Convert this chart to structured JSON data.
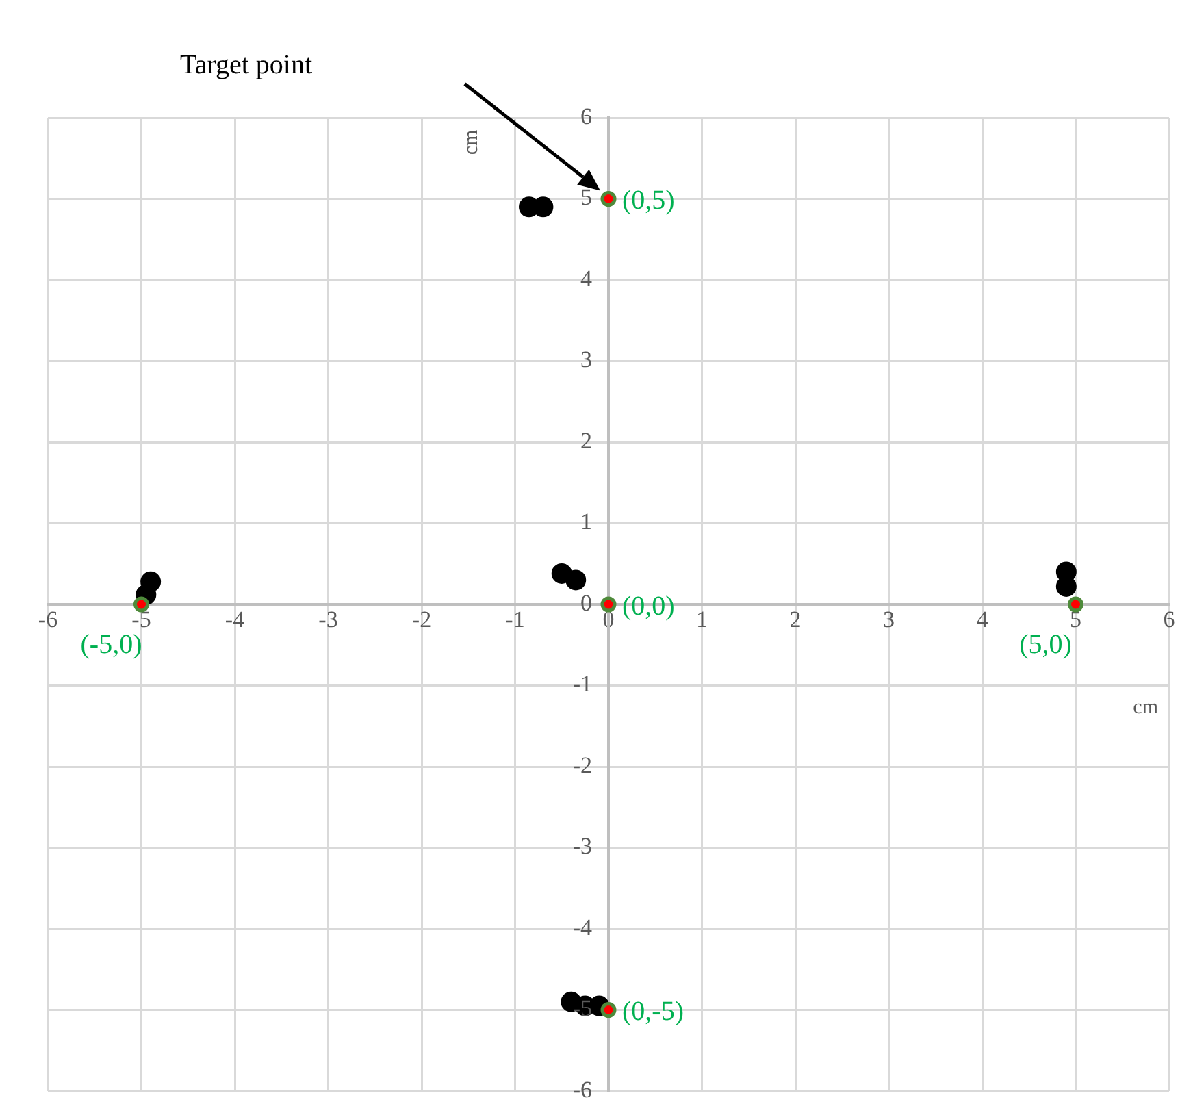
{
  "chart_data": {
    "type": "scatter",
    "xlabel": "cm",
    "ylabel": "cm",
    "xlim": [
      -6,
      6
    ],
    "ylim": [
      -6,
      6
    ],
    "xticks": [
      -6,
      -5,
      -4,
      -3,
      -2,
      -1,
      0,
      1,
      2,
      3,
      4,
      5,
      6
    ],
    "yticks": [
      -6,
      -5,
      -4,
      -3,
      -2,
      -1,
      0,
      1,
      2,
      3,
      4,
      5,
      6
    ],
    "grid": true,
    "legend": false,
    "marker": "circle",
    "series": [
      {
        "color": "#000000",
        "x": [
          -0.85,
          -0.7,
          -0.5,
          -0.35,
          -4.95,
          -4.9,
          4.9,
          4.9,
          -0.4,
          -0.25,
          -0.1
        ],
        "values": [
          4.9,
          4.9,
          0.38,
          0.3,
          0.12,
          0.28,
          0.4,
          0.22,
          -4.9,
          -4.95,
          -4.95
        ]
      },
      {
        "color": "#ff0000",
        "x": [
          0,
          -5,
          0,
          5,
          0
        ],
        "values": [
          5,
          0,
          0,
          0,
          -5
        ]
      }
    ],
    "annotations": [
      "Target point",
      {
        "text": "(0,5)",
        "x": 0,
        "y": 5
      },
      {
        "text": "(-5,0)",
        "x": -5,
        "y": 0
      },
      {
        "text": "(0,0)",
        "x": 0,
        "y": 0
      },
      {
        "text": "(5,0)",
        "x": 5,
        "y": 0
      },
      {
        "text": "(0,-5)",
        "x": 0,
        "y": -5
      }
    ]
  }
}
